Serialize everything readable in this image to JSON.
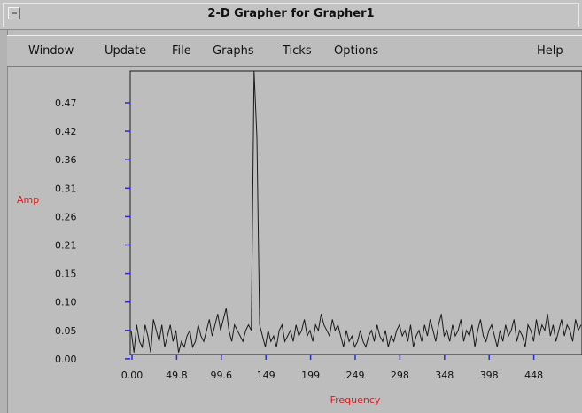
{
  "window": {
    "title": "2-D Grapher for Grapher1"
  },
  "menubar": {
    "items": [
      "Window",
      "Update",
      "File",
      "Graphs",
      "Ticks",
      "Options"
    ],
    "help_label": "Help"
  },
  "colors": {
    "axis_label": "#e01b1b",
    "tick_marks": "#2a2ad8",
    "plot_line": "#1a1a1a",
    "plot_bg": "#bdbdbd"
  },
  "icons": {
    "window_menu": "window-menu-icon"
  },
  "chart_data": {
    "type": "line",
    "xlabel": "Frequency",
    "ylabel": "Amp",
    "x_ticks": [
      "0.00",
      "49.8",
      "99.6",
      "149",
      "199",
      "249",
      "298",
      "348",
      "398",
      "448"
    ],
    "y_ticks": [
      "0.00",
      "0.05",
      "0.10",
      "0.15",
      "0.21",
      "0.26",
      "0.31",
      "0.36",
      "0.42",
      "0.47"
    ],
    "xlim": [
      0,
      505
    ],
    "ylim": [
      0,
      0.52
    ],
    "grid": false,
    "peak": {
      "x": 125,
      "y": 0.52
    },
    "secondary_peak": {
      "x": 128,
      "y": 0.4
    },
    "series": [
      {
        "values": [
          0.05,
          0.01,
          0.06,
          0.03,
          0.02,
          0.06,
          0.04,
          0.01,
          0.07,
          0.05,
          0.03,
          0.06,
          0.02,
          0.04,
          0.06,
          0.03,
          0.05,
          0.01,
          0.03,
          0.02,
          0.04,
          0.05,
          0.02,
          0.03,
          0.06,
          0.04,
          0.03,
          0.05,
          0.07,
          0.04,
          0.06,
          0.08,
          0.05,
          0.07,
          0.09,
          0.05,
          0.03,
          0.06,
          0.05,
          0.04,
          0.03,
          0.05,
          0.06,
          0.05,
          0.52,
          0.4,
          0.06,
          0.04,
          0.02,
          0.05,
          0.03,
          0.04,
          0.02,
          0.05,
          0.06,
          0.03,
          0.04,
          0.05,
          0.03,
          0.06,
          0.04,
          0.05,
          0.07,
          0.04,
          0.05,
          0.03,
          0.06,
          0.05,
          0.08,
          0.06,
          0.05,
          0.04,
          0.07,
          0.05,
          0.06,
          0.04,
          0.02,
          0.05,
          0.03,
          0.04,
          0.02,
          0.03,
          0.05,
          0.03,
          0.02,
          0.04,
          0.05,
          0.03,
          0.06,
          0.04,
          0.03,
          0.05,
          0.02,
          0.04,
          0.03,
          0.05,
          0.06,
          0.04,
          0.05,
          0.03,
          0.06,
          0.02,
          0.04,
          0.05,
          0.03,
          0.06,
          0.04,
          0.07,
          0.05,
          0.03,
          0.06,
          0.08,
          0.04,
          0.05,
          0.03,
          0.06,
          0.04,
          0.05,
          0.07,
          0.03,
          0.05,
          0.04,
          0.06,
          0.02,
          0.05,
          0.07,
          0.04,
          0.03,
          0.05,
          0.06,
          0.04,
          0.02,
          0.05,
          0.03,
          0.06,
          0.04,
          0.05,
          0.07,
          0.03,
          0.05,
          0.04,
          0.02,
          0.06,
          0.05,
          0.03,
          0.07,
          0.04,
          0.06,
          0.05,
          0.08,
          0.04,
          0.06,
          0.03,
          0.05,
          0.07,
          0.04,
          0.06,
          0.05,
          0.03,
          0.07,
          0.05,
          0.06
        ]
      }
    ]
  }
}
